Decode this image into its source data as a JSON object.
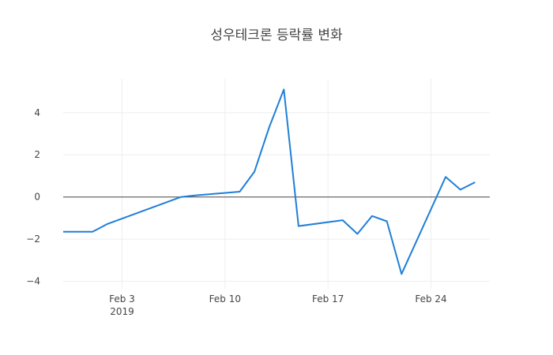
{
  "chart_data": {
    "type": "line",
    "title": "성우테크론 등락률 변화",
    "xlabel": "",
    "ylabel": "",
    "x_range": [
      "2019-01-30",
      "2019-02-28"
    ],
    "ylim": [
      -4.35,
      5.6
    ],
    "yticks": [
      -4,
      -2,
      0,
      2,
      4
    ],
    "ytick_labels": [
      "−4",
      "−2",
      "0",
      "2",
      "4"
    ],
    "xticks": [
      {
        "date": "2019-02-03",
        "label": "Feb 3",
        "sublabel": "2019"
      },
      {
        "date": "2019-02-10",
        "label": "Feb 10",
        "sublabel": ""
      },
      {
        "date": "2019-02-17",
        "label": "Feb 17",
        "sublabel": ""
      },
      {
        "date": "2019-02-24",
        "label": "Feb 24",
        "sublabel": ""
      }
    ],
    "grid": true,
    "zero_line": true,
    "series": [
      {
        "color": "#1f7fd8",
        "points": [
          {
            "x": "2019-01-30",
            "y": -1.65
          },
          {
            "x": "2019-01-31",
            "y": -1.65
          },
          {
            "x": "2019-02-01",
            "y": -1.65
          },
          {
            "x": "2019-02-02",
            "y": -1.28
          },
          {
            "x": "2019-02-07",
            "y": 0.0
          },
          {
            "x": "2019-02-08",
            "y": 0.08
          },
          {
            "x": "2019-02-11",
            "y": 0.25
          },
          {
            "x": "2019-02-12",
            "y": 1.2
          },
          {
            "x": "2019-02-13",
            "y": 3.3
          },
          {
            "x": "2019-02-14",
            "y": 5.1
          },
          {
            "x": "2019-02-15",
            "y": -1.38
          },
          {
            "x": "2019-02-18",
            "y": -1.1
          },
          {
            "x": "2019-02-19",
            "y": -1.75
          },
          {
            "x": "2019-02-20",
            "y": -0.9
          },
          {
            "x": "2019-02-21",
            "y": -1.15
          },
          {
            "x": "2019-02-22",
            "y": -3.65
          },
          {
            "x": "2019-02-25",
            "y": 0.95
          },
          {
            "x": "2019-02-26",
            "y": 0.35
          },
          {
            "x": "2019-02-27",
            "y": 0.7
          }
        ]
      }
    ]
  }
}
